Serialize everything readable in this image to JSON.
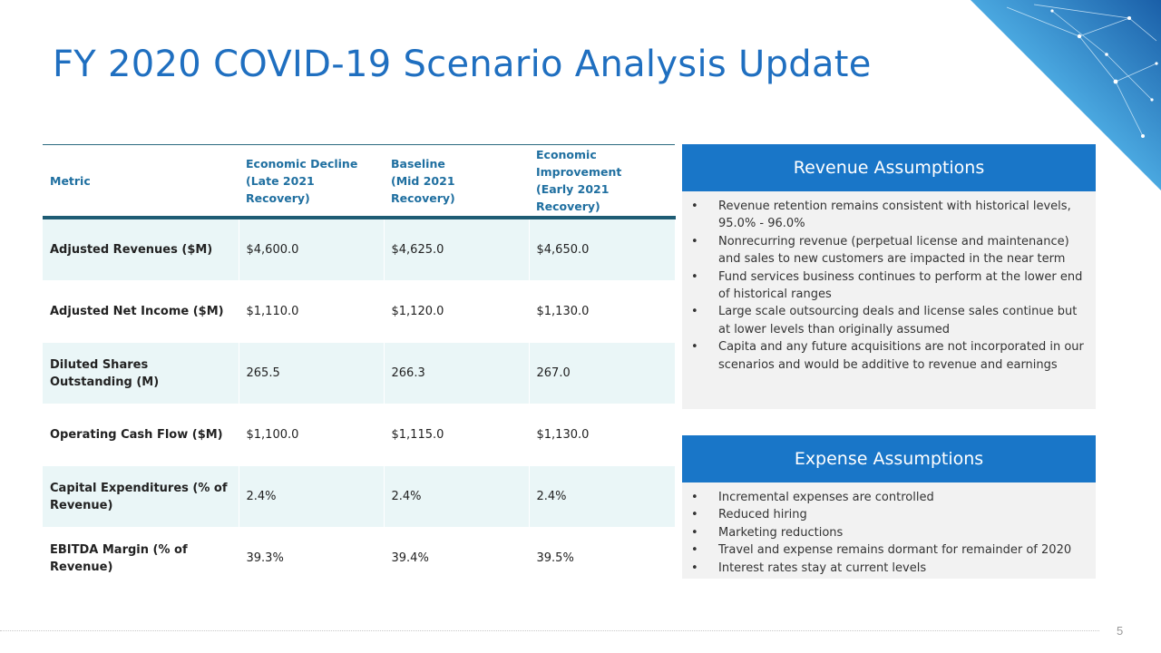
{
  "title": "FY 2020 COVID-19 Scenario Analysis Update",
  "decoration": {
    "icon": "network-globe-icon",
    "accent": "#1f6fc0"
  },
  "table": {
    "headers": [
      "Metric",
      "Economic Decline\n(Late 2021 Recovery)",
      "Baseline\n(Mid 2021 Recovery)",
      "Economic\nImprovement\n(Early 2021 Recovery)"
    ],
    "rows": [
      [
        "Adjusted Revenues ($M)",
        "$4,600.0",
        "$4,625.0",
        "$4,650.0"
      ],
      [
        "Adjusted Net Income ($M)",
        "$1,110.0",
        "$1,120.0",
        "$1,130.0"
      ],
      [
        "Diluted Shares Outstanding (M)",
        "265.5",
        "266.3",
        "267.0"
      ],
      [
        "Operating Cash Flow ($M)",
        "$1,100.0",
        "$1,115.0",
        "$1,130.0"
      ],
      [
        "Capital Expenditures (% of Revenue)",
        "2.4%",
        "2.4%",
        "2.4%"
      ],
      [
        "EBITDA Margin (% of Revenue)",
        "39.3%",
        "39.4%",
        "39.5%"
      ]
    ]
  },
  "revenue": {
    "title": "Revenue Assumptions",
    "bullets": [
      "Revenue retention remains consistent with historical levels, 95.0% - 96.0%",
      "Nonrecurring revenue (perpetual license and maintenance) and sales to new customers are impacted in the near term",
      "Fund services business continues to perform at the lower end of historical ranges",
      "Large scale outsourcing deals and license sales continue but at lower levels than originally assumed",
      "Capita and any future acquisitions are not incorporated in our scenarios and would be additive to revenue and earnings"
    ]
  },
  "expense": {
    "title": "Expense Assumptions",
    "bullets": [
      "Incremental expenses are controlled",
      "Reduced hiring",
      "Marketing reductions",
      "Travel and expense remains dormant for remainder of 2020",
      "Interest rates stay at current levels"
    ]
  },
  "bullet_glyph": "•",
  "page_number": "5"
}
